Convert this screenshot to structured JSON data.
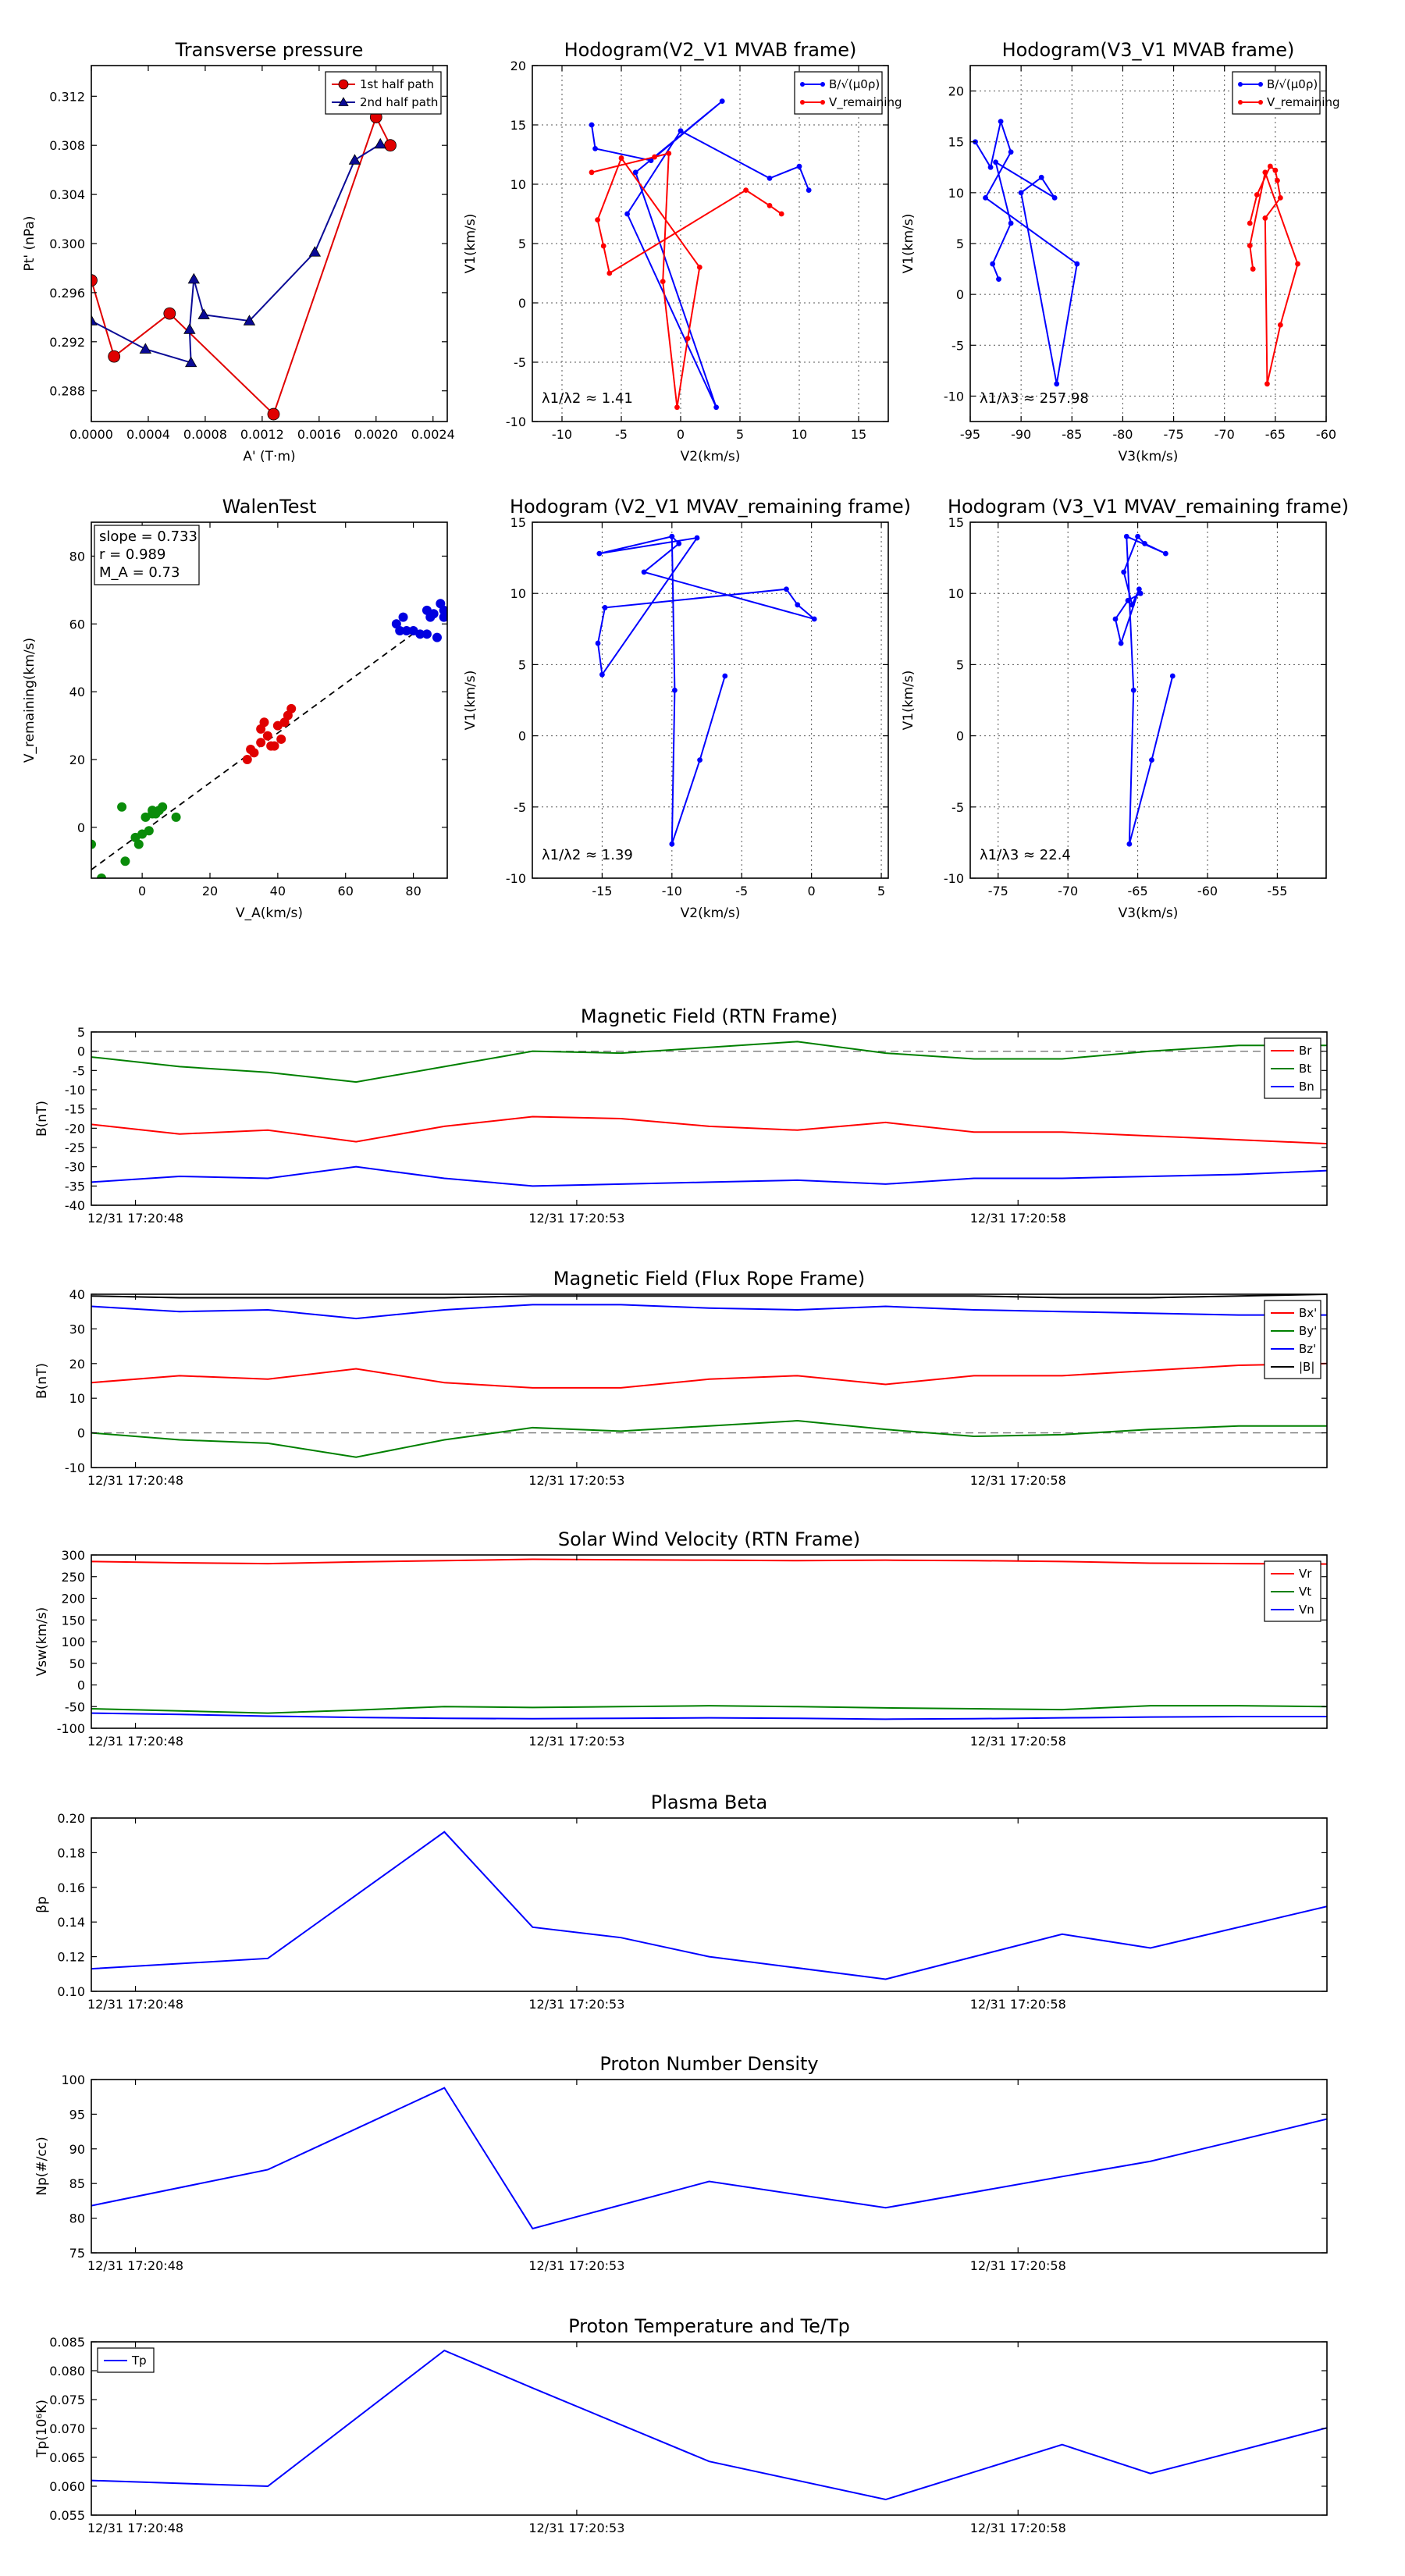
{
  "chart_data": [
    {
      "id": "transverse_pressure",
      "type": "scatter",
      "title": "Transverse pressure",
      "xlabel": "A' (T·m)",
      "ylabel": "Pt' (nPa)",
      "xlim": [
        0.0,
        0.0025
      ],
      "ylim": [
        0.2855,
        0.3145
      ],
      "xticks": [
        0.0,
        0.0004,
        0.0008,
        0.0012,
        0.0016,
        0.002,
        0.0024
      ],
      "xtick_labels": [
        "0.0000",
        "0.0004",
        "0.0008",
        "0.0012",
        "0.0016",
        "0.0020",
        "0.0024"
      ],
      "yticks": [
        0.288,
        0.292,
        0.296,
        0.3,
        0.304,
        0.308,
        0.312
      ],
      "ytick_labels": [
        "0.288",
        "0.292",
        "0.296",
        "0.300",
        "0.304",
        "0.308",
        "0.312"
      ],
      "grid": false,
      "legend": "top-right",
      "series": [
        {
          "name": "1st half path",
          "color": "#e00000",
          "marker": "circle",
          "line": true,
          "x": [
            0.0,
            0.00016,
            0.00055,
            0.00128,
            0.002,
            0.0021
          ],
          "y": [
            0.297,
            0.2908,
            0.2943,
            0.2861,
            0.3103,
            0.308
          ]
        },
        {
          "name": "2nd half path",
          "color": "#0a0a96",
          "marker": "triangle",
          "line": true,
          "x": [
            0.0,
            0.00038,
            0.0007,
            0.00069,
            0.00072,
            0.00079,
            0.00111,
            0.00157,
            0.00185,
            0.00203
          ],
          "y": [
            0.2937,
            0.2914,
            0.2903,
            0.293,
            0.2971,
            0.2942,
            0.2937,
            0.2993,
            0.3068,
            0.3081
          ]
        }
      ]
    },
    {
      "id": "hodogram_v2_v1_mvab",
      "type": "line",
      "title": "Hodogram(V2_V1 MVAB frame)",
      "xlabel": "V2(km/s)",
      "ylabel": "V1(km/s)",
      "xlim": [
        -12.5,
        17.5
      ],
      "ylim": [
        -10,
        20
      ],
      "xticks": [
        -10,
        -5,
        0,
        5,
        10,
        15
      ],
      "yticks": [
        -10,
        -5,
        0,
        5,
        10,
        15,
        20
      ],
      "grid": true,
      "legend": "top-right",
      "annotation": "λ1/λ2 ≈ 1.41",
      "series": [
        {
          "name": "B/√(μ0ρ)",
          "color": "#0000ff",
          "x": [
            -7.5,
            -7.2,
            -2.5,
            3.5,
            -3.8,
            3.0,
            -4.5,
            0.0,
            7.5,
            10.0,
            10.8
          ],
          "y": [
            15.0,
            13.0,
            12.0,
            17.0,
            11.0,
            -8.8,
            7.5,
            14.5,
            10.5,
            11.5,
            9.5
          ]
        },
        {
          "name": "V_remaining",
          "color": "#ff0000",
          "x": [
            -7.5,
            -2.2,
            -1.0,
            -1.5,
            -0.3,
            0.6,
            1.6,
            -5.0,
            -7.0,
            -6.5,
            -6.0,
            5.5,
            7.5,
            8.5
          ],
          "y": [
            11.0,
            12.3,
            12.6,
            1.8,
            -8.8,
            -3.0,
            3.0,
            12.2,
            7.0,
            4.8,
            2.5,
            9.5,
            8.2,
            7.5
          ]
        }
      ]
    },
    {
      "id": "hodogram_v3_v1_mvab",
      "type": "line",
      "title": "Hodogram(V3_V1 MVAB frame)",
      "xlabel": "V3(km/s)",
      "ylabel": "V1(km/s)",
      "xlim": [
        -95,
        -60
      ],
      "ylim": [
        -12.5,
        22.5
      ],
      "xticks": [
        -95,
        -90,
        -85,
        -80,
        -75,
        -70,
        -65,
        -60
      ],
      "yticks": [
        -10,
        -5,
        0,
        5,
        10,
        15,
        20
      ],
      "grid": true,
      "legend": "top-right",
      "annotation": "λ1/λ3 ≈ 257.98",
      "series": [
        {
          "name": "B/√(μ0ρ)",
          "color": "#0000ff",
          "x": [
            -94.5,
            -93.0,
            -92.0,
            -91.0,
            -93.5,
            -84.5,
            -86.5,
            -90.0,
            -88.0,
            -86.7,
            -92.5,
            -91.0,
            -92.8,
            -92.2
          ],
          "y": [
            15.0,
            12.5,
            17.0,
            14.0,
            9.5,
            3.0,
            -8.8,
            10.0,
            11.5,
            9.5,
            13.0,
            7.0,
            3.0,
            1.5
          ]
        },
        {
          "name": "V_remaining",
          "color": "#ff0000",
          "x": [
            -67.5,
            -66.8,
            -65.5,
            -65.0,
            -64.8,
            -64.5,
            -66.0,
            -65.8,
            -64.5,
            -62.8,
            -66.0,
            -67.5,
            -67.2
          ],
          "y": [
            7.0,
            9.8,
            12.6,
            12.2,
            11.2,
            9.5,
            7.5,
            -8.8,
            -3.0,
            3.0,
            12.0,
            4.8,
            2.5
          ]
        }
      ]
    },
    {
      "id": "walen_test",
      "type": "scatter",
      "title": "WalenTest",
      "xlabel": "V_A(km/s)",
      "ylabel": "V_remaining(km/s)",
      "xlim": [
        -15,
        90
      ],
      "ylim": [
        -15,
        90
      ],
      "xticks": [
        0,
        20,
        40,
        60,
        80
      ],
      "yticks": [
        0,
        20,
        40,
        60,
        80
      ],
      "grid": false,
      "annotation_lines": [
        "slope = 0.733",
        "r = 0.989",
        "M_A = 0.73"
      ],
      "fit_line": {
        "slope": 0.733,
        "intercept": -1.5,
        "style": "dashed"
      },
      "series": [
        {
          "name": "green",
          "color": "#0a8c0a",
          "x": [
            -15,
            -12,
            -6,
            -5,
            -2,
            -1,
            0,
            2,
            3,
            3,
            4,
            5,
            6,
            10,
            1
          ],
          "y": [
            -5,
            -15,
            6,
            -10,
            -3,
            -5,
            -2,
            -1,
            4,
            5,
            4,
            5,
            6,
            3,
            3
          ]
        },
        {
          "name": "red",
          "color": "#e00000",
          "x": [
            31,
            32,
            33,
            35,
            35,
            36,
            37,
            38,
            39,
            40,
            41,
            42,
            43,
            44
          ],
          "y": [
            20,
            23,
            22,
            25,
            29,
            31,
            27,
            24,
            24,
            30,
            26,
            31,
            33,
            35
          ]
        },
        {
          "name": "blue",
          "color": "#0000e0",
          "x": [
            75,
            76,
            77,
            78,
            80,
            82,
            84,
            85,
            86,
            87,
            88,
            89,
            89,
            90,
            84
          ],
          "y": [
            60,
            58,
            62,
            58,
            58,
            57,
            64,
            62,
            63,
            56,
            66,
            64,
            62,
            63,
            57
          ]
        }
      ]
    },
    {
      "id": "hodogram_v2_v1_mvav",
      "type": "line",
      "title": "Hodogram (V2_V1 MVAV_remaining frame)",
      "xlabel": "V2(km/s)",
      "ylabel": "V1(km/s)",
      "xlim": [
        -20,
        5.5
      ],
      "ylim": [
        -10,
        15
      ],
      "xticks": [
        -15,
        -10,
        -5,
        0,
        5
      ],
      "yticks": [
        -10,
        -5,
        0,
        5,
        10,
        15
      ],
      "grid": true,
      "annotation": "λ1/λ2 ≈ 1.39",
      "series": [
        {
          "name": "V",
          "color": "#0000ff",
          "x": [
            -6.2,
            -8.0,
            -10.0,
            -9.8,
            -10.0,
            -15.2,
            -8.2,
            -15.0,
            -15.3,
            -14.8,
            -1.8,
            -1.0,
            0.2,
            -12.0,
            -9.5,
            -10.0
          ],
          "y": [
            4.2,
            -1.7,
            -7.6,
            3.2,
            14.0,
            12.8,
            13.9,
            4.3,
            6.5,
            9.0,
            10.3,
            9.2,
            8.2,
            11.5,
            13.5,
            14.0
          ]
        }
      ]
    },
    {
      "id": "hodogram_v3_v1_mvav",
      "type": "line",
      "title": "Hodogram (V3_V1 MVAV_remaining frame)",
      "xlabel": "V3(km/s)",
      "ylabel": "V1(km/s)",
      "xlim": [
        -77,
        -51.5
      ],
      "ylim": [
        -10,
        15
      ],
      "xticks": [
        -75,
        -70,
        -65,
        -60,
        -55
      ],
      "yticks": [
        -10,
        -5,
        0,
        5,
        10,
        15
      ],
      "grid": true,
      "annotation": "λ1/λ3 ≈ 22.4",
      "series": [
        {
          "name": "V",
          "color": "#0000ff",
          "x": [
            -62.5,
            -64.0,
            -65.6,
            -65.3,
            -65.8,
            -63.0,
            -64.5,
            -65.0,
            -66.0,
            -65.4,
            -64.9,
            -66.2,
            -66.6,
            -65.7,
            -64.8
          ],
          "y": [
            4.2,
            -1.7,
            -7.6,
            3.2,
            14.0,
            12.8,
            13.5,
            14.0,
            11.5,
            9.2,
            10.3,
            6.5,
            8.2,
            9.5,
            10.0
          ]
        }
      ]
    },
    {
      "id": "magnetic_field_rtn",
      "type": "line",
      "title": "Magnetic Field (RTN Frame)",
      "xlabel": "",
      "ylabel": "B(nT)",
      "xlim": [
        0,
        14
      ],
      "ylim": [
        -40,
        5
      ],
      "yticks": [
        -40,
        -35,
        -30,
        -25,
        -20,
        -15,
        -10,
        -5,
        0,
        5
      ],
      "xticks": [
        0.5,
        5.5,
        10.5
      ],
      "xtick_labels": [
        "12/31 17:20:48",
        "12/31 17:20:53",
        "12/31 17:20:58"
      ],
      "zero_line": true,
      "legend": "top-right",
      "series": [
        {
          "name": "Br",
          "color": "#ff0000",
          "values": [
            -19,
            -21.5,
            -20.5,
            -23.5,
            -19.5,
            -17,
            -17.5,
            -19.5,
            -20.5,
            -18.5,
            -21,
            -21,
            -22,
            -23,
            -24
          ]
        },
        {
          "name": "Bt",
          "color": "#008000",
          "values": [
            -1.5,
            -4,
            -5.5,
            -8,
            -4,
            0,
            -0.5,
            1,
            2.5,
            -0.5,
            -2,
            -2,
            0,
            1.5,
            1.5
          ]
        },
        {
          "name": "Bn",
          "color": "#0000ff",
          "values": [
            -34,
            -32.5,
            -33,
            -30,
            -33,
            -35,
            -34.5,
            -34,
            -33.5,
            -34.5,
            -33,
            -33,
            -32.5,
            -32,
            -31
          ]
        }
      ]
    },
    {
      "id": "magnetic_field_flux_rope",
      "type": "line",
      "title": "Magnetic Field (Flux Rope Frame)",
      "xlabel": "",
      "ylabel": "B(nT)",
      "xlim": [
        0,
        14
      ],
      "ylim": [
        -10,
        40
      ],
      "yticks": [
        -10,
        0,
        10,
        20,
        30,
        40
      ],
      "xticks": [
        0.5,
        5.5,
        10.5
      ],
      "xtick_labels": [
        "12/31 17:20:48",
        "12/31 17:20:53",
        "12/31 17:20:58"
      ],
      "zero_line": true,
      "legend": "top-right",
      "series": [
        {
          "name": "Bx'",
          "color": "#ff0000",
          "values": [
            14.5,
            16.5,
            15.5,
            18.5,
            14.5,
            13,
            13,
            15.5,
            16.5,
            14,
            16.5,
            16.5,
            18,
            19.5,
            20
          ]
        },
        {
          "name": "By'",
          "color": "#008000",
          "values": [
            0,
            -2,
            -3,
            -7,
            -2,
            1.5,
            0.5,
            2,
            3.5,
            1,
            -1,
            -0.5,
            1,
            2,
            2
          ]
        },
        {
          "name": "Bz'",
          "color": "#0000ff",
          "values": [
            36.5,
            35,
            35.5,
            33,
            35.5,
            37,
            37,
            36,
            35.5,
            36.5,
            35.5,
            35,
            34.5,
            34,
            34
          ]
        },
        {
          "name": "|B|",
          "color": "#000000",
          "values": [
            39.5,
            39,
            39,
            39,
            39,
            39.5,
            39.5,
            39.5,
            39.5,
            39.5,
            39.5,
            39,
            39,
            39.5,
            40
          ]
        }
      ]
    },
    {
      "id": "solar_wind_velocity",
      "type": "line",
      "title": "Solar Wind Velocity (RTN Frame)",
      "xlabel": "",
      "ylabel": "Vsw(km/s)",
      "xlim": [
        0,
        14
      ],
      "ylim": [
        -100,
        300
      ],
      "yticks": [
        -100,
        -50,
        0,
        50,
        100,
        150,
        200,
        250,
        300
      ],
      "xticks": [
        0.5,
        5.5,
        10.5
      ],
      "xtick_labels": [
        "12/31 17:20:48",
        "12/31 17:20:53",
        "12/31 17:20:58"
      ],
      "legend": "top-right",
      "series": [
        {
          "name": "Vr",
          "color": "#ff0000",
          "values": [
            285,
            282,
            280,
            284,
            287,
            290,
            289,
            288,
            287,
            288,
            287,
            285,
            281,
            280,
            279
          ]
        },
        {
          "name": "Vt",
          "color": "#008000",
          "values": [
            -55,
            -60,
            -65,
            -58,
            -50,
            -52,
            -50,
            -48,
            -50,
            -53,
            -55,
            -57,
            -48,
            -48,
            -50
          ]
        },
        {
          "name": "Vn",
          "color": "#0000ff",
          "values": [
            -65,
            -68,
            -72,
            -75,
            -77,
            -78,
            -77,
            -76,
            -77,
            -79,
            -78,
            -76,
            -74,
            -73,
            -73
          ]
        }
      ]
    },
    {
      "id": "plasma_beta",
      "type": "line",
      "title": "Plasma Beta",
      "xlabel": "",
      "ylabel": "βp",
      "xlim": [
        0,
        14
      ],
      "ylim": [
        0.1,
        0.2
      ],
      "yticks": [
        0.1,
        0.12,
        0.14,
        0.16,
        0.18,
        0.2
      ],
      "ytick_labels": [
        "0.10",
        "0.12",
        "0.14",
        "0.16",
        "0.18",
        "0.20"
      ],
      "xticks": [
        0.5,
        5.5,
        10.5
      ],
      "xtick_labels": [
        "12/31 17:20:48",
        "12/31 17:20:53",
        "12/31 17:20:58"
      ],
      "series": [
        {
          "name": "beta",
          "color": "#0000ff",
          "x": [
            0,
            2,
            4,
            5,
            6,
            7,
            9,
            11,
            12,
            14
          ],
          "y": [
            0.113,
            0.119,
            0.192,
            0.137,
            0.131,
            0.12,
            0.107,
            0.133,
            0.125,
            0.149
          ]
        }
      ]
    },
    {
      "id": "proton_density",
      "type": "line",
      "title": "Proton Number Density",
      "xlabel": "",
      "ylabel": "Np(#/cc)",
      "xlim": [
        0,
        14
      ],
      "ylim": [
        75,
        100
      ],
      "yticks": [
        75,
        80,
        85,
        90,
        95,
        100
      ],
      "xticks": [
        0.5,
        5.5,
        10.5
      ],
      "xtick_labels": [
        "12/31 17:20:48",
        "12/31 17:20:53",
        "12/31 17:20:58"
      ],
      "series": [
        {
          "name": "Np",
          "color": "#0000ff",
          "x": [
            0,
            2,
            4,
            5,
            7,
            9,
            11,
            12,
            14
          ],
          "y": [
            81.8,
            87,
            98.8,
            78.5,
            85.3,
            81.5,
            86,
            88.2,
            94.3
          ]
        }
      ]
    },
    {
      "id": "proton_temperature",
      "type": "line",
      "title": "Proton Temperature and Te/Tp",
      "xlabel": "",
      "ylabel": "Tp(10⁶K)",
      "xlim": [
        0,
        14
      ],
      "ylim": [
        0.055,
        0.085
      ],
      "yticks": [
        0.055,
        0.06,
        0.065,
        0.07,
        0.075,
        0.08,
        0.085
      ],
      "ytick_labels": [
        "0.055",
        "0.060",
        "0.065",
        "0.070",
        "0.075",
        "0.080",
        "0.085"
      ],
      "xticks": [
        0.5,
        5.5,
        10.5
      ],
      "xtick_labels": [
        "12/31 17:20:48",
        "12/31 17:20:53",
        "12/31 17:20:58"
      ],
      "legend": "top-left",
      "series": [
        {
          "name": "Tp",
          "color": "#0000ff",
          "x": [
            0,
            2,
            4,
            5,
            7,
            9,
            11,
            12,
            14
          ],
          "y": [
            0.061,
            0.06,
            0.0835,
            0.077,
            0.0643,
            0.0577,
            0.0672,
            0.0622,
            0.0701
          ]
        }
      ]
    }
  ]
}
